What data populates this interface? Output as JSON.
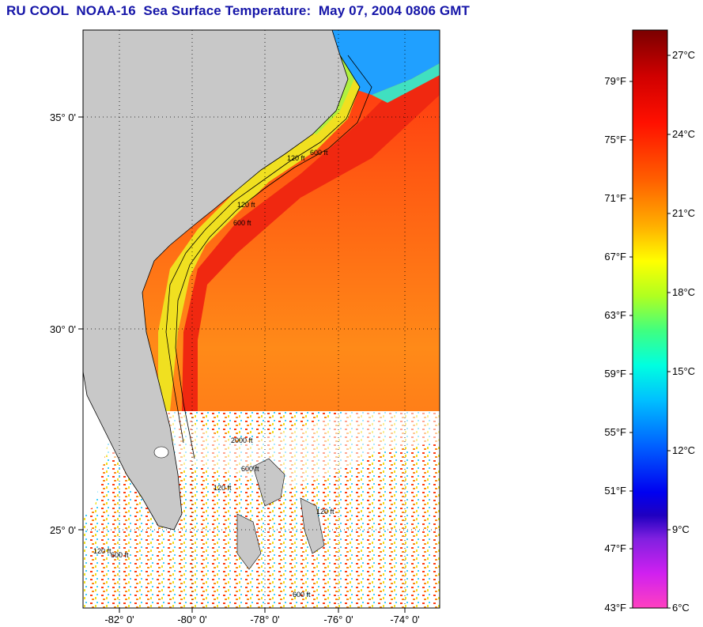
{
  "title": "RU COOL  NOAA-16  Sea Surface Temperature:  May 07, 2004 0806 GMT",
  "map": {
    "lat_labels": [
      "35° 0'",
      "30° 0'",
      "25° 0'"
    ],
    "lon_labels": [
      "-82° 0'",
      "-80° 0'",
      "-78° 0'",
      "-76° 0'",
      "-74° 0'"
    ],
    "contour_labels": [
      "120 ft",
      "600 ft",
      "120 ft",
      "600 ft",
      "2000 ft",
      "600 ft",
      "120 ft",
      "600 ft",
      "120 ft",
      "600 ft",
      "120 ft"
    ],
    "colors": {
      "land": "#c8c8c8",
      "cloud": "#ffffff",
      "gulf_stream": "#f03010",
      "shelf": "#f0e020"
    }
  },
  "colorbar": {
    "fahrenheit": [
      "79°F",
      "75°F",
      "71°F",
      "67°F",
      "63°F",
      "59°F",
      "55°F",
      "51°F",
      "47°F",
      "43°F"
    ],
    "celsius": [
      "27°C",
      "24°C",
      "21°C",
      "18°C",
      "15°C",
      "12°C",
      "9°C",
      "6°C"
    ]
  }
}
